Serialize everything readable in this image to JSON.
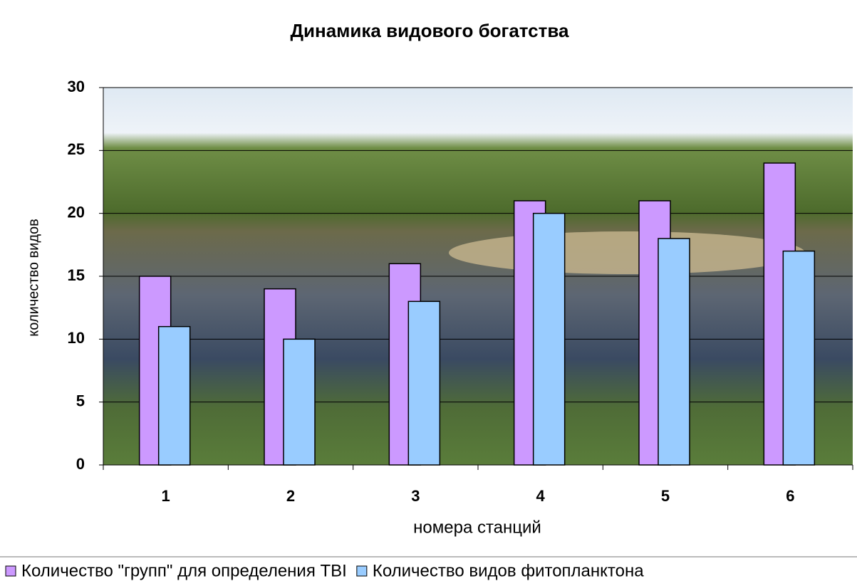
{
  "chart_data": {
    "type": "bar",
    "title": "Динамика видового богатства",
    "x_label": "номера станций",
    "y_label": "количество видов",
    "categories": [
      "1",
      "2",
      "3",
      "4",
      "5",
      "6"
    ],
    "series": [
      {
        "name": "Количество \"групп\" для определения ТВI",
        "color": "#cc99ff",
        "values": [
          15,
          14,
          16,
          21,
          21,
          24
        ]
      },
      {
        "name": "Количество видов фитопланктона",
        "color": "#99ccff",
        "values": [
          11,
          10,
          13,
          20,
          18,
          17
        ]
      }
    ],
    "ylim": [
      0,
      30
    ],
    "yticks": [
      0,
      5,
      10,
      15,
      20,
      25,
      30
    ],
    "grid": true,
    "legend": "bottom"
  }
}
